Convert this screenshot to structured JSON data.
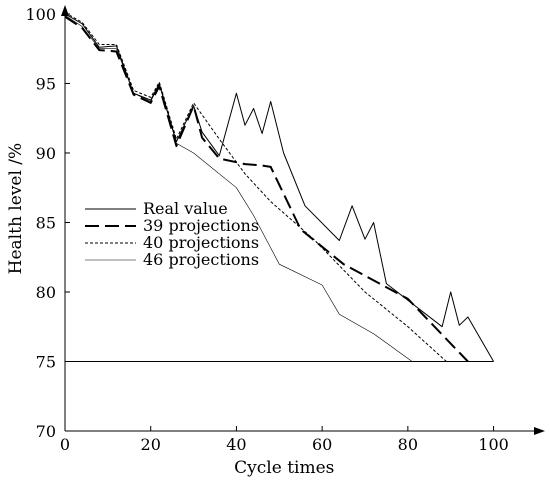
{
  "chart_data": {
    "type": "line",
    "xlabel": "Cycle times",
    "ylabel": "Health level /%",
    "xlim": [
      0,
      112
    ],
    "ylim": [
      70,
      100.5
    ],
    "xticks": [
      0,
      20,
      40,
      60,
      80,
      100
    ],
    "yticks": [
      70,
      75,
      80,
      85,
      90,
      95,
      100
    ],
    "threshold": {
      "y": 75,
      "x_range": [
        0,
        100
      ]
    },
    "legend_position": "left",
    "grid": false,
    "series": [
      {
        "name": "Real value",
        "style": "solid",
        "points": [
          [
            0,
            100
          ],
          [
            4,
            99.3
          ],
          [
            8,
            97.6
          ],
          [
            12,
            97.7
          ],
          [
            16,
            94.3
          ],
          [
            20,
            93.8
          ],
          [
            22,
            95
          ],
          [
            26,
            90.8
          ],
          [
            30,
            93.4
          ],
          [
            32,
            91.5
          ],
          [
            36,
            89.8
          ],
          [
            40,
            94.3
          ],
          [
            42,
            92
          ],
          [
            44,
            93.2
          ],
          [
            46,
            91.4
          ],
          [
            48,
            93.7
          ],
          [
            51,
            90
          ],
          [
            56,
            86.2
          ],
          [
            64,
            83.7
          ],
          [
            67,
            86.2
          ],
          [
            70,
            83.8
          ],
          [
            72,
            85
          ],
          [
            75,
            80.6
          ],
          [
            88,
            77.5
          ],
          [
            90,
            80
          ],
          [
            92,
            77.6
          ],
          [
            94,
            78.2
          ],
          [
            100,
            75
          ]
        ]
      },
      {
        "name": "39 projections",
        "style": "long-dash",
        "points": [
          [
            0,
            99.8
          ],
          [
            4,
            99
          ],
          [
            8,
            97.4
          ],
          [
            12,
            97.3
          ],
          [
            16,
            94.2
          ],
          [
            20,
            93.6
          ],
          [
            22,
            94.8
          ],
          [
            26,
            90.5
          ],
          [
            30,
            93.4
          ],
          [
            32,
            91.1
          ],
          [
            36,
            89.6
          ],
          [
            42,
            89.2
          ],
          [
            46,
            89.1
          ],
          [
            48,
            89
          ],
          [
            55,
            84.5
          ],
          [
            65,
            82
          ],
          [
            80,
            79.5
          ],
          [
            94,
            75
          ]
        ]
      },
      {
        "name": "40 projections",
        "style": "short-dash",
        "points": [
          [
            0,
            100.1
          ],
          [
            4,
            99.4
          ],
          [
            8,
            97.8
          ],
          [
            12,
            97.8
          ],
          [
            16,
            94.5
          ],
          [
            20,
            94
          ],
          [
            22,
            95.1
          ],
          [
            26,
            91
          ],
          [
            30,
            93.6
          ],
          [
            36,
            91
          ],
          [
            42,
            88.5
          ],
          [
            48,
            86.5
          ],
          [
            58,
            83.8
          ],
          [
            70,
            80
          ],
          [
            80,
            77.5
          ],
          [
            89,
            75
          ]
        ]
      },
      {
        "name": "46 projections",
        "style": "thin-solid",
        "points": [
          [
            0,
            99.9
          ],
          [
            4,
            99.1
          ],
          [
            8,
            97.5
          ],
          [
            12,
            97.5
          ],
          [
            16,
            94.3
          ],
          [
            20,
            93.7
          ],
          [
            22,
            94.9
          ],
          [
            26,
            90.7
          ],
          [
            30,
            90
          ],
          [
            40,
            87.5
          ],
          [
            44,
            85.5
          ],
          [
            50,
            82
          ],
          [
            60,
            80.5
          ],
          [
            64,
            78.4
          ],
          [
            72,
            77
          ],
          [
            81,
            75
          ]
        ]
      }
    ]
  }
}
